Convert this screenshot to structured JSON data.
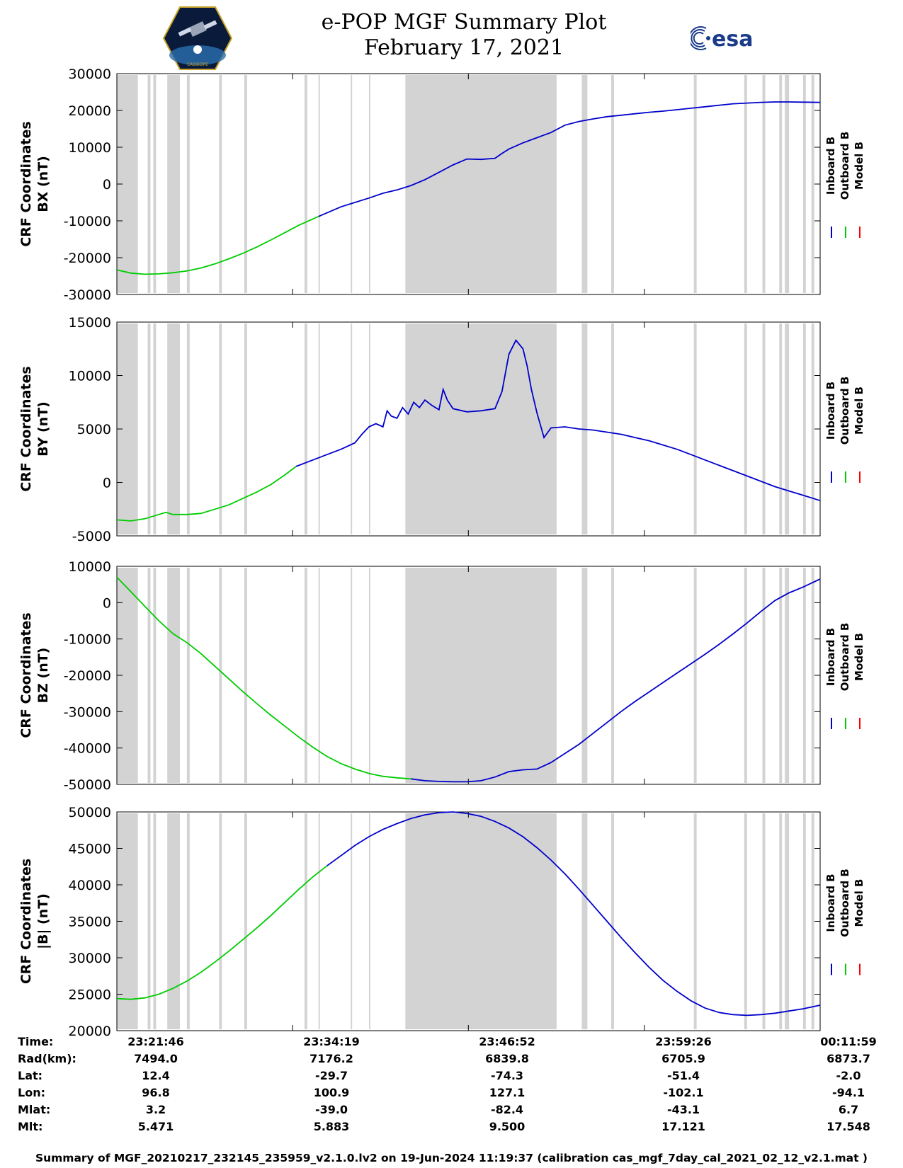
{
  "header": {
    "title_line1": "e-POP MGF Summary Plot",
    "title_line2": "February 17, 2021",
    "left_logo": "cassiope-satellite-logo",
    "left_logo_text": "CASSIOPE",
    "right_logo_text": "esa"
  },
  "chart_data": [
    {
      "type": "line",
      "panel": "BX",
      "ylabel": "CRF Coordinates\nBX (nT)",
      "ylabel_line1": "CRF Coordinates",
      "ylabel_line2": "BX (nT)",
      "ylim": [
        -30000,
        30000
      ],
      "yticks": [
        30000,
        20000,
        10000,
        0,
        -10000,
        -20000,
        -30000
      ],
      "ytick_labels": [
        "30000",
        "20000",
        "10000",
        "0",
        "-10000",
        "-20000",
        "-30000"
      ],
      "x_unit": "minutes from 23:21:46",
      "xlim": [
        0,
        50.22
      ],
      "series": [
        {
          "name": "Inboard B",
          "color": "#0000cc",
          "x": [
            14.4,
            16,
            17,
            18,
            19,
            20,
            21,
            22,
            23,
            24,
            25,
            26,
            27,
            27.5,
            28,
            29,
            30,
            31,
            32,
            33,
            34,
            35,
            36,
            37,
            38,
            39,
            40,
            41,
            42,
            43,
            44,
            45,
            46,
            47,
            48,
            49,
            50.22
          ],
          "y": [
            -8800,
            -6200,
            -5000,
            -3800,
            -2500,
            -1600,
            -400,
            1200,
            3200,
            5200,
            6800,
            6700,
            7000,
            8300,
            9500,
            11200,
            12600,
            14000,
            16000,
            17000,
            17700,
            18300,
            18700,
            19100,
            19500,
            19800,
            20200,
            20600,
            21000,
            21400,
            21800,
            22000,
            22200,
            22300,
            22300,
            22250,
            22200
          ]
        },
        {
          "name": "Outboard B",
          "color": "#00cc00",
          "x": [
            0,
            1,
            2,
            3,
            4,
            5,
            6,
            7,
            8,
            9,
            10,
            11,
            12,
            13,
            14.4
          ],
          "y": [
            -23300,
            -24200,
            -24500,
            -24400,
            -24100,
            -23600,
            -22800,
            -21700,
            -20300,
            -18800,
            -17100,
            -15200,
            -13200,
            -11200,
            -8800
          ]
        },
        {
          "name": "Model B",
          "color": "#ff0000",
          "x": [],
          "y": []
        }
      ]
    },
    {
      "type": "line",
      "panel": "BY",
      "ylabel": "CRF Coordinates\nBY (nT)",
      "ylabel_line1": "CRF Coordinates",
      "ylabel_line2": "BY (nT)",
      "ylim": [
        -5000,
        15000
      ],
      "yticks": [
        15000,
        10000,
        5000,
        0,
        -5000
      ],
      "ytick_labels": [
        "15000",
        "10000",
        "5000",
        "0",
        "-5000"
      ],
      "xlim": [
        0,
        50.22
      ],
      "series": [
        {
          "name": "Inboard B",
          "color": "#0000cc",
          "x": [
            12.8,
            14,
            15,
            16,
            17,
            17.5,
            18,
            18.5,
            19,
            19.3,
            19.6,
            20,
            20.4,
            20.8,
            21.2,
            21.6,
            22,
            22.5,
            23,
            23.3,
            23.6,
            24,
            25,
            26,
            27,
            27.5,
            28,
            28.5,
            29,
            29.3,
            29.6,
            30,
            30.5,
            31,
            32,
            33,
            34,
            35,
            36,
            37,
            38,
            39,
            40,
            41,
            42,
            43,
            44,
            45,
            46,
            47,
            48,
            49,
            50.22
          ],
          "y": [
            1500,
            2100,
            2600,
            3100,
            3700,
            4500,
            5200,
            5500,
            5200,
            6700,
            6200,
            6000,
            7000,
            6400,
            7500,
            7000,
            7700,
            7200,
            6800,
            8700,
            7700,
            6900,
            6600,
            6700,
            6900,
            8500,
            12000,
            13300,
            12500,
            10900,
            8700,
            6500,
            4200,
            5100,
            5200,
            5000,
            4900,
            4700,
            4500,
            4200,
            3900,
            3500,
            3100,
            2600,
            2100,
            1600,
            1100,
            600,
            100,
            -400,
            -800,
            -1200,
            -1700
          ]
        },
        {
          "name": "Outboard B",
          "color": "#00cc00",
          "x": [
            0,
            1,
            2,
            3,
            3.5,
            4,
            5,
            6,
            7,
            8,
            9,
            10,
            11,
            12,
            12.8
          ],
          "y": [
            -3500,
            -3600,
            -3400,
            -3000,
            -2800,
            -3000,
            -3000,
            -2900,
            -2500,
            -2100,
            -1500,
            -900,
            -200,
            700,
            1500
          ]
        },
        {
          "name": "Model B",
          "color": "#ff0000",
          "x": [],
          "y": []
        }
      ]
    },
    {
      "type": "line",
      "panel": "BZ",
      "ylabel": "CRF Coordinates\nBZ (nT)",
      "ylabel_line1": "CRF Coordinates",
      "ylabel_line2": "BZ (nT)",
      "ylim": [
        -50000,
        10000
      ],
      "yticks": [
        10000,
        0,
        -10000,
        -20000,
        -30000,
        -40000,
        -50000
      ],
      "ytick_labels": [
        "10000",
        "0",
        "-10000",
        "-20000",
        "-30000",
        "-40000",
        "-50000"
      ],
      "xlim": [
        0,
        50.22
      ],
      "series": [
        {
          "name": "Inboard B",
          "color": "#0000cc",
          "x": [
            21,
            22,
            23,
            24,
            25,
            26,
            27,
            28,
            29,
            30,
            31,
            32,
            33,
            34,
            35,
            36,
            37,
            38,
            39,
            40,
            41,
            42,
            43,
            44,
            45,
            46,
            47,
            48,
            49,
            50.22
          ],
          "y": [
            -48500,
            -49000,
            -49200,
            -49300,
            -49300,
            -49000,
            -48000,
            -46500,
            -46000,
            -45800,
            -44000,
            -41500,
            -39000,
            -36000,
            -33000,
            -30000,
            -27200,
            -24600,
            -22000,
            -19400,
            -16800,
            -14200,
            -11500,
            -8600,
            -5600,
            -2400,
            600,
            2700,
            4300,
            6500
          ]
        },
        {
          "name": "Outboard B",
          "color": "#00cc00",
          "x": [
            0,
            1,
            2,
            3,
            4,
            5,
            6,
            7,
            8,
            9,
            10,
            11,
            12,
            13,
            14,
            15,
            16,
            17,
            18,
            19,
            20,
            21
          ],
          "y": [
            7000,
            3000,
            -1000,
            -5000,
            -8500,
            -11000,
            -14000,
            -17500,
            -21000,
            -24500,
            -27800,
            -31000,
            -34000,
            -37000,
            -39800,
            -42300,
            -44300,
            -45800,
            -47000,
            -47800,
            -48200,
            -48500
          ]
        },
        {
          "name": "Model B",
          "color": "#ff0000",
          "x": [],
          "y": []
        }
      ]
    },
    {
      "type": "line",
      "panel": "|B|",
      "ylabel": "CRF Coordinates\n|B| (nT)",
      "ylabel_line1": "CRF Coordinates",
      "ylabel_line2": "|B| (nT)",
      "ylim": [
        20000,
        50000
      ],
      "yticks": [
        50000,
        45000,
        40000,
        35000,
        30000,
        25000,
        20000
      ],
      "ytick_labels": [
        "50000",
        "45000",
        "40000",
        "35000",
        "30000",
        "25000",
        "20000"
      ],
      "xlim": [
        0,
        50.22
      ],
      "series": [
        {
          "name": "Inboard B",
          "color": "#0000cc",
          "x": [
            15,
            16,
            17,
            18,
            19,
            20,
            21,
            22,
            23,
            24,
            25,
            26,
            27,
            28,
            29,
            30,
            31,
            32,
            33,
            34,
            35,
            36,
            37,
            38,
            39,
            40,
            41,
            42,
            43,
            44,
            45,
            46,
            47,
            48,
            49,
            50.22
          ],
          "y": [
            42600,
            44000,
            45400,
            46600,
            47600,
            48400,
            49100,
            49600,
            49900,
            50000,
            49800,
            49400,
            48700,
            47800,
            46600,
            45100,
            43400,
            41500,
            39400,
            37200,
            35000,
            32800,
            30700,
            28700,
            26900,
            25400,
            24100,
            23100,
            22500,
            22200,
            22100,
            22200,
            22400,
            22700,
            23000,
            23500
          ]
        },
        {
          "name": "Outboard B",
          "color": "#00cc00",
          "x": [
            0,
            1,
            2,
            3,
            4,
            5,
            6,
            7,
            8,
            9,
            10,
            11,
            12,
            13,
            14,
            15
          ],
          "y": [
            24400,
            24300,
            24500,
            25000,
            25800,
            26800,
            28000,
            29400,
            30900,
            32500,
            34100,
            35800,
            37600,
            39400,
            41100,
            42600
          ]
        },
        {
          "name": "Model B",
          "color": "#ff0000",
          "x": [],
          "y": []
        }
      ]
    }
  ],
  "gray_bands": [
    [
      0,
      1.5
    ],
    [
      2.2,
      2.4
    ],
    [
      2.6,
      2.8
    ],
    [
      3.6,
      4.5
    ],
    [
      5.0,
      5.2
    ],
    [
      7.3,
      7.5
    ],
    [
      9.1,
      9.3
    ],
    [
      13.4,
      13.6
    ],
    [
      14.4,
      14.5
    ],
    [
      16.7,
      16.8
    ],
    [
      18.0,
      18.1
    ],
    [
      20.6,
      31.4
    ],
    [
      33.2,
      33.6
    ],
    [
      35.3,
      35.5
    ],
    [
      41.2,
      41.4
    ],
    [
      44.8,
      45.0
    ],
    [
      46.1,
      46.3
    ],
    [
      47.3,
      47.5
    ],
    [
      47.7,
      48.0
    ],
    [
      49.0,
      49.2
    ],
    [
      49.6,
      49.8
    ]
  ],
  "legend": [
    {
      "label": "Inboard B",
      "color": "#0000cc"
    },
    {
      "label": "Outboard B",
      "color": "#00cc00"
    },
    {
      "label": "Model B",
      "color": "#ff0000"
    }
  ],
  "x_tick_minutes": [
    0,
    12.55,
    25.1,
    37.67,
    50.22
  ],
  "table": {
    "labels": [
      "Time:",
      "Rad(km):",
      "Lat:",
      "Lon:",
      "Mlat:",
      "Mlt:"
    ],
    "rows": [
      [
        "23:21:46",
        "23:34:19",
        "23:46:52",
        "23:59:26",
        "00:11:59"
      ],
      [
        "7494.0",
        "7176.2",
        "6839.8",
        "6705.9",
        "6873.7"
      ],
      [
        "12.4",
        "-29.7",
        "-74.3",
        "-51.4",
        "-2.0"
      ],
      [
        "96.8",
        "100.9",
        "127.1",
        "-102.1",
        "-94.1"
      ],
      [
        "3.2",
        "-39.0",
        "-82.4",
        "-43.1",
        "6.7"
      ],
      [
        "5.471",
        "5.883",
        "9.500",
        "17.121",
        "17.548"
      ]
    ]
  },
  "footer": "Summary of MGF_20210217_232145_235959_v2.1.0.lv2 on 19-Jun-2024 11:19:37 (calibration cas_mgf_7day_cal_2021_02_12_v2.1.mat )"
}
